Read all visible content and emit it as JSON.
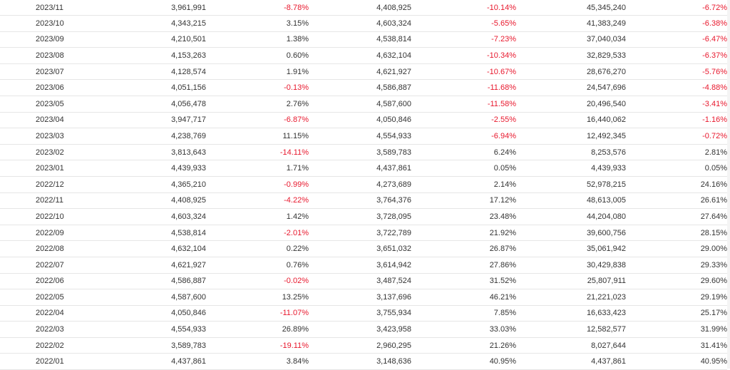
{
  "table": {
    "rows": [
      {
        "period": "2023/11",
        "value1": "3,961,991",
        "change1": "-8.78%",
        "value2": "4,408,925",
        "change2": "-10.14%",
        "cumulative": "45,345,240",
        "cum_change": "-6.72%"
      },
      {
        "period": "2023/10",
        "value1": "4,343,215",
        "change1": "3.15%",
        "value2": "4,603,324",
        "change2": "-5.65%",
        "cumulative": "41,383,249",
        "cum_change": "-6.38%"
      },
      {
        "period": "2023/09",
        "value1": "4,210,501",
        "change1": "1.38%",
        "value2": "4,538,814",
        "change2": "-7.23%",
        "cumulative": "37,040,034",
        "cum_change": "-6.47%"
      },
      {
        "period": "2023/08",
        "value1": "4,153,263",
        "change1": "0.60%",
        "value2": "4,632,104",
        "change2": "-10.34%",
        "cumulative": "32,829,533",
        "cum_change": "-6.37%"
      },
      {
        "period": "2023/07",
        "value1": "4,128,574",
        "change1": "1.91%",
        "value2": "4,621,927",
        "change2": "-10.67%",
        "cumulative": "28,676,270",
        "cum_change": "-5.76%"
      },
      {
        "period": "2023/06",
        "value1": "4,051,156",
        "change1": "-0.13%",
        "value2": "4,586,887",
        "change2": "-11.68%",
        "cumulative": "24,547,696",
        "cum_change": "-4.88%"
      },
      {
        "period": "2023/05",
        "value1": "4,056,478",
        "change1": "2.76%",
        "value2": "4,587,600",
        "change2": "-11.58%",
        "cumulative": "20,496,540",
        "cum_change": "-3.41%"
      },
      {
        "period": "2023/04",
        "value1": "3,947,717",
        "change1": "-6.87%",
        "value2": "4,050,846",
        "change2": "-2.55%",
        "cumulative": "16,440,062",
        "cum_change": "-1.16%"
      },
      {
        "period": "2023/03",
        "value1": "4,238,769",
        "change1": "11.15%",
        "value2": "4,554,933",
        "change2": "-6.94%",
        "cumulative": "12,492,345",
        "cum_change": "-0.72%"
      },
      {
        "period": "2023/02",
        "value1": "3,813,643",
        "change1": "-14.11%",
        "value2": "3,589,783",
        "change2": "6.24%",
        "cumulative": "8,253,576",
        "cum_change": "2.81%"
      },
      {
        "period": "2023/01",
        "value1": "4,439,933",
        "change1": "1.71%",
        "value2": "4,437,861",
        "change2": "0.05%",
        "cumulative": "4,439,933",
        "cum_change": "0.05%"
      },
      {
        "period": "2022/12",
        "value1": "4,365,210",
        "change1": "-0.99%",
        "value2": "4,273,689",
        "change2": "2.14%",
        "cumulative": "52,978,215",
        "cum_change": "24.16%"
      },
      {
        "period": "2022/11",
        "value1": "4,408,925",
        "change1": "-4.22%",
        "value2": "3,764,376",
        "change2": "17.12%",
        "cumulative": "48,613,005",
        "cum_change": "26.61%"
      },
      {
        "period": "2022/10",
        "value1": "4,603,324",
        "change1": "1.42%",
        "value2": "3,728,095",
        "change2": "23.48%",
        "cumulative": "44,204,080",
        "cum_change": "27.64%"
      },
      {
        "period": "2022/09",
        "value1": "4,538,814",
        "change1": "-2.01%",
        "value2": "3,722,789",
        "change2": "21.92%",
        "cumulative": "39,600,756",
        "cum_change": "28.15%"
      },
      {
        "period": "2022/08",
        "value1": "4,632,104",
        "change1": "0.22%",
        "value2": "3,651,032",
        "change2": "26.87%",
        "cumulative": "35,061,942",
        "cum_change": "29.00%"
      },
      {
        "period": "2022/07",
        "value1": "4,621,927",
        "change1": "0.76%",
        "value2": "3,614,942",
        "change2": "27.86%",
        "cumulative": "30,429,838",
        "cum_change": "29.33%"
      },
      {
        "period": "2022/06",
        "value1": "4,586,887",
        "change1": "-0.02%",
        "value2": "3,487,524",
        "change2": "31.52%",
        "cumulative": "25,807,911",
        "cum_change": "29.60%"
      },
      {
        "period": "2022/05",
        "value1": "4,587,600",
        "change1": "13.25%",
        "value2": "3,137,696",
        "change2": "46.21%",
        "cumulative": "21,221,023",
        "cum_change": "29.19%"
      },
      {
        "period": "2022/04",
        "value1": "4,050,846",
        "change1": "-11.07%",
        "value2": "3,755,934",
        "change2": "7.85%",
        "cumulative": "16,633,423",
        "cum_change": "25.17%"
      },
      {
        "period": "2022/03",
        "value1": "4,554,933",
        "change1": "26.89%",
        "value2": "3,423,958",
        "change2": "33.03%",
        "cumulative": "12,582,577",
        "cum_change": "31.99%"
      },
      {
        "period": "2022/02",
        "value1": "3,589,783",
        "change1": "-19.11%",
        "value2": "2,960,295",
        "change2": "21.26%",
        "cumulative": "8,027,644",
        "cum_change": "31.41%"
      },
      {
        "period": "2022/01",
        "value1": "4,437,861",
        "change1": "3.84%",
        "value2": "3,148,636",
        "change2": "40.95%",
        "cumulative": "4,437,861",
        "cum_change": "40.95%"
      }
    ]
  },
  "colors": {
    "negative": "#e8182d",
    "positive": "#333333",
    "grid_line": "#e6e6e6"
  }
}
